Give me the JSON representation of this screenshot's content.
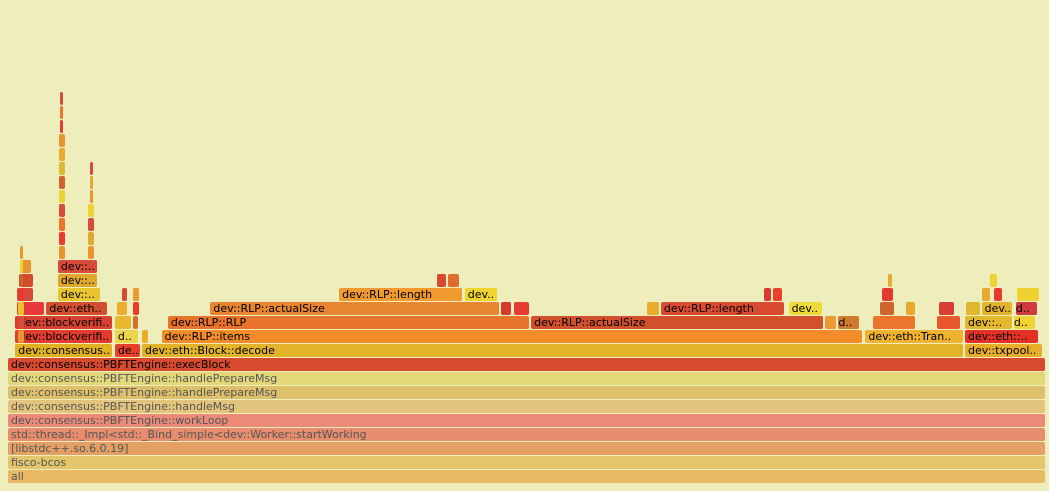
{
  "chart_data": {
    "type": "flamegraph",
    "frames": [
      {
        "label": "all",
        "depth": 0,
        "start": 0,
        "end": 100,
        "color": "#e9b964",
        "faded": true
      },
      {
        "label": "fisco-bcos",
        "depth": 1,
        "start": 0,
        "end": 100,
        "color": "#e3c56c",
        "faded": true
      },
      {
        "label": "[libstdc++.so.6.0.19]",
        "depth": 2,
        "start": 0,
        "end": 100,
        "color": "#e4a064",
        "faded": true
      },
      {
        "label": "std::thread::_Impl<std::_Bind_simple<dev::Worker::startWorking",
        "depth": 3,
        "start": 0,
        "end": 100,
        "color": "#e78d6d",
        "faded": true
      },
      {
        "label": "dev::consensus::PBFTEngine::workLoop",
        "depth": 4,
        "start": 0,
        "end": 100,
        "color": "#ea8a77",
        "faded": true
      },
      {
        "label": "dev::consensus::PBFTEngine::handleMsg",
        "depth": 5,
        "start": 0,
        "end": 100,
        "color": "#e3c47c",
        "faded": true
      },
      {
        "label": "dev::consensus::PBFTEngine::handlePrepareMsg",
        "depth": 6,
        "start": 0,
        "end": 100,
        "color": "#dfc06a",
        "faded": true
      },
      {
        "label": "dev::consensus::PBFTEngine::handlePrepareMsg",
        "depth": 7,
        "start": 0,
        "end": 100,
        "color": "#e2d879",
        "faded": true
      },
      {
        "label": "dev::consensus::PBFTEngine::execBlock",
        "depth": 8,
        "start": 0,
        "end": 100,
        "color": "#d84a2e",
        "faded": false
      },
      {
        "label": "dev::consensus..",
        "depth": 9,
        "start": 0.7,
        "end": 10.1,
        "color": "#e0b021",
        "faded": false
      },
      {
        "label": "de..",
        "depth": 9,
        "start": 10.3,
        "end": 12.8,
        "color": "#e84028",
        "faded": false
      },
      {
        "label": "dev::eth::Block::decode",
        "depth": 9,
        "start": 12.9,
        "end": 92.1,
        "color": "#e2b328",
        "faded": false
      },
      {
        "label": "dev::txpool..",
        "depth": 9,
        "start": 92.2,
        "end": 99.7,
        "color": "#e8ad28",
        "faded": false
      },
      {
        "label": "dev::blockverifi..",
        "depth": 10,
        "start": 0.7,
        "end": 10.1,
        "color": "#e13c2f",
        "faded": false
      },
      {
        "label": "d..",
        "depth": 10,
        "start": 10.3,
        "end": 12.6,
        "color": "#ecd54b",
        "faded": false
      },
      {
        "label": "",
        "depth": 10,
        "start": 12.9,
        "end": 13.6,
        "color": "#e9b027",
        "faded": false
      },
      {
        "label": "dev::RLP::items",
        "depth": 10,
        "start": 14.8,
        "end": 82.4,
        "color": "#f48c2c",
        "faded": false
      },
      {
        "label": "dev::eth::Tran..",
        "depth": 10,
        "start": 82.6,
        "end": 92.1,
        "color": "#f0b22f",
        "faded": false
      },
      {
        "label": "dev::eth::..",
        "depth": 10,
        "start": 92.2,
        "end": 99.3,
        "color": "#e43126",
        "faded": false
      },
      {
        "label": "dev::blockverifi..",
        "depth": 11,
        "start": 0.7,
        "end": 10.1,
        "color": "#d64030",
        "faded": false
      },
      {
        "label": "",
        "depth": 11,
        "start": 10.3,
        "end": 11.9,
        "color": "#e8b930",
        "faded": false
      },
      {
        "label": "",
        "depth": 11,
        "start": 12.0,
        "end": 12.6,
        "color": "#d66f2e",
        "faded": false
      },
      {
        "label": "dev::RLP::RLP",
        "depth": 11,
        "start": 15.4,
        "end": 50.3,
        "color": "#e8742c",
        "faded": false
      },
      {
        "label": "dev::RLP::actualSize",
        "depth": 11,
        "start": 50.4,
        "end": 78.6,
        "color": "#d2502c",
        "faded": false
      },
      {
        "label": "",
        "depth": 11,
        "start": 78.7,
        "end": 79.9,
        "color": "#ea9a33",
        "faded": false
      },
      {
        "label": "d..",
        "depth": 11,
        "start": 80.0,
        "end": 82.1,
        "color": "#cf7a2f",
        "faded": false
      },
      {
        "label": "",
        "depth": 11,
        "start": 83.3,
        "end": 87.5,
        "color": "#ec742d",
        "faded": false
      },
      {
        "label": "",
        "depth": 11,
        "start": 89.5,
        "end": 91.8,
        "color": "#e8582c",
        "faded": false
      },
      {
        "label": "dev::..",
        "depth": 11,
        "start": 92.2,
        "end": 96.8,
        "color": "#e3b82e",
        "faded": false
      },
      {
        "label": "d..",
        "depth": 11,
        "start": 96.9,
        "end": 99.0,
        "color": "#efd431",
        "faded": false
      },
      {
        "label": "",
        "depth": 12,
        "start": 0.9,
        "end": 3.6,
        "color": "#e83a3c",
        "faded": false
      },
      {
        "label": "dev::eth..",
        "depth": 12,
        "start": 3.7,
        "end": 9.6,
        "color": "#d24e2f",
        "faded": false
      },
      {
        "label": "",
        "depth": 12,
        "start": 10.5,
        "end": 11.6,
        "color": "#efad2f",
        "faded": false
      },
      {
        "label": "",
        "depth": 12,
        "start": 12.0,
        "end": 12.7,
        "color": "#e83b2b",
        "faded": false
      },
      {
        "label": "dev::RLP::actualSize",
        "depth": 12,
        "start": 19.5,
        "end": 47.4,
        "color": "#e88530",
        "faded": false
      },
      {
        "label": "",
        "depth": 12,
        "start": 47.5,
        "end": 48.6,
        "color": "#d53a2f",
        "faded": false
      },
      {
        "label": "",
        "depth": 12,
        "start": 48.7,
        "end": 50.3,
        "color": "#e53a2f",
        "faded": false
      },
      {
        "label": "",
        "depth": 12,
        "start": 61.6,
        "end": 62.8,
        "color": "#e8ad2f",
        "faded": false
      },
      {
        "label": "dev::RLP::length",
        "depth": 12,
        "start": 62.9,
        "end": 74.9,
        "color": "#d94a30",
        "faded": false
      },
      {
        "label": "dev..",
        "depth": 12,
        "start": 75.2,
        "end": 78.5,
        "color": "#eddc39",
        "faded": false
      },
      {
        "label": "",
        "depth": 12,
        "start": 84.0,
        "end": 85.5,
        "color": "#d0642f",
        "faded": false
      },
      {
        "label": "",
        "depth": 12,
        "start": 86.5,
        "end": 87.5,
        "color": "#e9a92f",
        "faded": false
      },
      {
        "label": "",
        "depth": 12,
        "start": 89.7,
        "end": 91.2,
        "color": "#d83f34",
        "faded": false
      },
      {
        "label": "",
        "depth": 12,
        "start": 92.3,
        "end": 93.7,
        "color": "#e0b82f",
        "faded": false
      },
      {
        "label": "dev..",
        "depth": 12,
        "start": 93.8,
        "end": 96.8,
        "color": "#e5b42d",
        "faded": false
      },
      {
        "label": "d..",
        "depth": 12,
        "start": 97.1,
        "end": 99.2,
        "color": "#d03a3c",
        "faded": false
      },
      {
        "label": "",
        "depth": 13,
        "start": 0.9,
        "end": 2.5,
        "color": "#d54a3a",
        "faded": false
      },
      {
        "label": "dev::..",
        "depth": 13,
        "start": 4.8,
        "end": 9.0,
        "color": "#e8c52f",
        "faded": false
      },
      {
        "label": "",
        "depth": 13,
        "start": 11.0,
        "end": 11.6,
        "color": "#d64a2f",
        "faded": false
      },
      {
        "label": "",
        "depth": 13,
        "start": 12.0,
        "end": 12.7,
        "color": "#ed9a2f",
        "faded": false
      },
      {
        "label": "dev::RLP::length",
        "depth": 13,
        "start": 31.9,
        "end": 43.8,
        "color": "#f09a30",
        "faded": false
      },
      {
        "label": "dev..",
        "depth": 13,
        "start": 44.0,
        "end": 47.2,
        "color": "#f0d52f",
        "faded": false
      },
      {
        "label": "",
        "depth": 13,
        "start": 72.8,
        "end": 73.6,
        "color": "#d83a2f",
        "faded": false
      },
      {
        "label": "",
        "depth": 13,
        "start": 73.7,
        "end": 74.7,
        "color": "#e8402f",
        "faded": false
      },
      {
        "label": "",
        "depth": 13,
        "start": 84.2,
        "end": 85.4,
        "color": "#e53b2f",
        "faded": false
      },
      {
        "label": "",
        "depth": 13,
        "start": 93.8,
        "end": 94.7,
        "color": "#e8a92f",
        "faded": false
      },
      {
        "label": "",
        "depth": 13,
        "start": 95.0,
        "end": 95.9,
        "color": "#e83a2f",
        "faded": false
      },
      {
        "label": "",
        "depth": 13,
        "start": 97.2,
        "end": 99.4,
        "color": "#eed22f",
        "faded": false
      },
      {
        "label": "",
        "depth": 14,
        "start": 1.1,
        "end": 2.5,
        "color": "#d44a2f",
        "faded": false
      },
      {
        "label": "dev::..",
        "depth": 14,
        "start": 4.8,
        "end": 8.7,
        "color": "#e0a82f",
        "faded": false
      },
      {
        "label": "",
        "depth": 14,
        "start": 41.3,
        "end": 42.3,
        "color": "#d84a2f",
        "faded": false
      },
      {
        "label": "",
        "depth": 14,
        "start": 42.4,
        "end": 43.5,
        "color": "#e06a2f",
        "faded": false
      },
      {
        "label": "",
        "depth": 14,
        "start": 84.8,
        "end": 85.3,
        "color": "#e8a92f",
        "faded": false
      },
      {
        "label": "",
        "depth": 14,
        "start": 94.6,
        "end": 95.4,
        "color": "#eed22f",
        "faded": false
      },
      {
        "label": "",
        "depth": 15,
        "start": 1.2,
        "end": 2.3,
        "color": "#e8952f",
        "faded": false
      },
      {
        "label": "dev::..",
        "depth": 15,
        "start": 4.8,
        "end": 8.7,
        "color": "#d84a3a",
        "faded": false
      }
    ],
    "spires": [
      {
        "x": 1.3,
        "top": 16,
        "bottom": 10,
        "colors": [
          "#e8952f",
          "#d84a3a",
          "#e8c52f",
          "#e83a2f",
          "#d0642f",
          "#eed22f"
        ]
      },
      {
        "x": 5.2,
        "top": 27,
        "bottom": 16,
        "colors": [
          "#e8952f",
          "#e83a2f",
          "#ec742d",
          "#d84a3a",
          "#eed22f",
          "#d0642f",
          "#e0b82f",
          "#e8a92f"
        ]
      },
      {
        "x": 8.0,
        "top": 22,
        "bottom": 16,
        "colors": [
          "#e8952f",
          "#e0a82f",
          "#d84a3a",
          "#eed22f"
        ]
      }
    ]
  }
}
